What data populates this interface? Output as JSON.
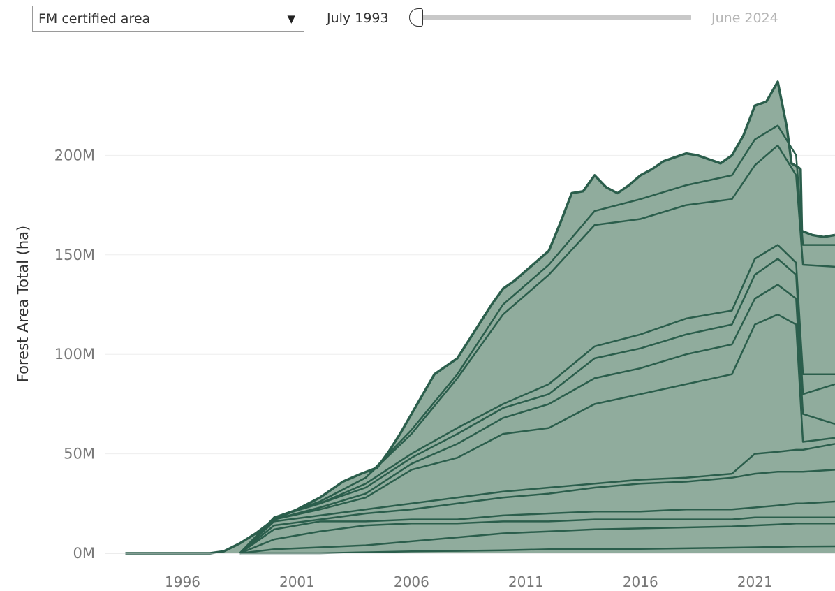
{
  "filter": {
    "selected": "FM certified area"
  },
  "time_slider": {
    "start_label": "July 1993",
    "end_label": "June 2024",
    "position": 0
  },
  "chart_data": {
    "type": "area",
    "stacked": true,
    "title": "",
    "xlabel": "",
    "ylabel": "Forest Area Total (ha)",
    "xlim": [
      1992.6,
      2024.5
    ],
    "ylim": [
      0,
      250000000
    ],
    "x_ticks": [
      "1996",
      "2001",
      "2006",
      "2011",
      "2016",
      "2021"
    ],
    "x_tick_values": [
      1996,
      2001,
      2006,
      2011,
      2016,
      2021
    ],
    "y_ticks": [
      "0M",
      "50M",
      "100M",
      "150M",
      "200M"
    ],
    "y_tick_values": [
      0,
      50000000,
      100000000,
      150000000,
      200000000
    ],
    "grid": true,
    "legend": "none",
    "colors": {
      "line": "#2b5e4c",
      "fill": "#8aa898",
      "grid": "#eeeeee"
    },
    "total": {
      "x": [
        1993.5,
        1995.0,
        1996.5,
        1997.2,
        1997.8,
        1998.5,
        1999.2,
        2000.0,
        2001.0,
        2002.0,
        2003.0,
        2003.8,
        2004.5,
        2005.0,
        2005.5,
        2006.0,
        2006.5,
        2007.0,
        2007.5,
        2008.0,
        2008.5,
        2009.0,
        2009.5,
        2010.0,
        2010.5,
        2011.0,
        2011.5,
        2012.0,
        2012.5,
        2013.0,
        2013.5,
        2014.0,
        2014.5,
        2015.0,
        2015.5,
        2016.0,
        2016.5,
        2017.0,
        2017.5,
        2018.0,
        2018.5,
        2019.0,
        2019.5,
        2020.0,
        2020.5,
        2021.0,
        2021.5,
        2022.0,
        2022.4,
        2022.6,
        2022.9,
        2023.0,
        2023.05,
        2023.5,
        2024.0,
        2024.5
      ],
      "y": [
        0,
        0,
        0,
        0,
        1000000,
        5000000,
        10000000,
        17000000,
        22000000,
        28000000,
        36000000,
        40000000,
        43000000,
        51000000,
        60000000,
        70000000,
        80000000,
        90000000,
        94000000,
        98000000,
        107000000,
        116000000,
        125000000,
        133000000,
        137000000,
        142000000,
        147000000,
        152000000,
        166000000,
        181000000,
        182000000,
        190000000,
        184000000,
        181000000,
        185000000,
        190000000,
        193000000,
        197000000,
        199000000,
        201000000,
        200000000,
        198000000,
        196000000,
        200000000,
        210000000,
        225000000,
        227000000,
        237000000,
        214000000,
        196000000,
        194000000,
        193000000,
        162000000,
        160000000,
        159000000,
        160000000
      ]
    },
    "layers": [
      {
        "x": [
          1998.5,
          2000,
          2002,
          2004,
          2006,
          2008,
          2010,
          2012,
          2014,
          2016,
          2018,
          2020,
          2021,
          2022,
          2022.8,
          2023.1,
          2024.5
        ],
        "y": [
          0,
          0,
          0,
          500000,
          1000000,
          1200000,
          1500000,
          2000000,
          2000000,
          2200000,
          2500000,
          2800000,
          3000000,
          3200000,
          3400000,
          3400000,
          3500000
        ]
      },
      {
        "x": [
          1998.5,
          2000,
          2002,
          2004,
          2006,
          2008,
          2010,
          2012,
          2014,
          2016,
          2018,
          2020,
          2021,
          2022,
          2022.8,
          2023.1,
          2024.5
        ],
        "y": [
          0,
          2000000,
          3000000,
          4000000,
          6000000,
          8000000,
          10000000,
          11000000,
          12000000,
          12500000,
          13000000,
          13500000,
          14000000,
          14500000,
          15000000,
          15000000,
          15000000
        ]
      },
      {
        "x": [
          1998.5,
          2000,
          2002,
          2004,
          2006,
          2008,
          2010,
          2012,
          2014,
          2016,
          2018,
          2020,
          2021,
          2022,
          2022.8,
          2023.1,
          2024.5
        ],
        "y": [
          0,
          7000000,
          11000000,
          14000000,
          15000000,
          15000000,
          16000000,
          16000000,
          17000000,
          17000000,
          17000000,
          17000000,
          18000000,
          18000000,
          18000000,
          18000000,
          18000000
        ]
      },
      {
        "x": [
          1998.5,
          2000,
          2002,
          2004,
          2006,
          2008,
          2010,
          2012,
          2014,
          2016,
          2018,
          2020,
          2021,
          2022,
          2022.8,
          2023.1,
          2024.5
        ],
        "y": [
          0,
          12000000,
          16000000,
          16000000,
          17000000,
          17000000,
          19000000,
          20000000,
          21000000,
          21000000,
          22000000,
          22000000,
          23000000,
          24000000,
          25000000,
          25000000,
          26000000
        ]
      },
      {
        "x": [
          1998.5,
          2000,
          2002,
          2004,
          2006,
          2008,
          2010,
          2012,
          2014,
          2016,
          2018,
          2020,
          2021,
          2022,
          2022.8,
          2023.1,
          2024.5
        ],
        "y": [
          0,
          14000000,
          17000000,
          20000000,
          22000000,
          25000000,
          28000000,
          30000000,
          33000000,
          35000000,
          36000000,
          38000000,
          40000000,
          41000000,
          41000000,
          41000000,
          42000000
        ]
      },
      {
        "x": [
          1998.5,
          2000,
          2002,
          2004,
          2006,
          2008,
          2010,
          2012,
          2014,
          2016,
          2018,
          2020,
          2021,
          2022,
          2022.8,
          2023.1,
          2024.5
        ],
        "y": [
          0,
          16000000,
          19000000,
          22000000,
          25000000,
          28000000,
          31000000,
          33000000,
          35000000,
          37000000,
          38000000,
          40000000,
          50000000,
          51000000,
          52000000,
          52000000,
          55000000
        ]
      },
      {
        "x": [
          1998.5,
          2000,
          2002,
          2004,
          2006,
          2008,
          2010,
          2012,
          2014,
          2016,
          2018,
          2020,
          2021,
          2022,
          2022.8,
          2023.1,
          2024.5
        ],
        "y": [
          0,
          17000000,
          22000000,
          28000000,
          42000000,
          48000000,
          60000000,
          63000000,
          75000000,
          80000000,
          85000000,
          90000000,
          115000000,
          120000000,
          115000000,
          56000000,
          58000000
        ]
      },
      {
        "x": [
          1998.5,
          2000,
          2002,
          2004,
          2006,
          2008,
          2010,
          2012,
          2014,
          2016,
          2018,
          2020,
          2021,
          2022,
          2022.8,
          2023.1,
          2024.5
        ],
        "y": [
          0,
          17000000,
          23000000,
          30000000,
          45000000,
          55000000,
          68000000,
          75000000,
          88000000,
          93000000,
          100000000,
          105000000,
          128000000,
          135000000,
          128000000,
          70000000,
          65000000
        ]
      },
      {
        "x": [
          1998.5,
          2000,
          2002,
          2004,
          2006,
          2008,
          2010,
          2012,
          2014,
          2016,
          2018,
          2020,
          2021,
          2022,
          2022.8,
          2023.1,
          2024.5
        ],
        "y": [
          0,
          18000000,
          25000000,
          33000000,
          48000000,
          60000000,
          73000000,
          80000000,
          98000000,
          103000000,
          110000000,
          115000000,
          140000000,
          148000000,
          140000000,
          80000000,
          85000000
        ]
      },
      {
        "x": [
          1998.5,
          2000,
          2002,
          2004,
          2006,
          2008,
          2010,
          2012,
          2014,
          2016,
          2018,
          2020,
          2021,
          2022,
          2022.8,
          2023.1,
          2024.5
        ],
        "y": [
          0,
          18000000,
          25000000,
          35000000,
          50000000,
          63000000,
          75000000,
          85000000,
          104000000,
          110000000,
          118000000,
          122000000,
          148000000,
          155000000,
          146000000,
          90000000,
          90000000
        ]
      },
      {
        "x": [
          1998.5,
          2000,
          2002,
          2004,
          2006,
          2008,
          2010,
          2012,
          2014,
          2016,
          2018,
          2020,
          2021,
          2022,
          2022.8,
          2023.1,
          2024.5
        ],
        "y": [
          0,
          18000000,
          26000000,
          38000000,
          60000000,
          88000000,
          120000000,
          140000000,
          165000000,
          168000000,
          175000000,
          178000000,
          195000000,
          205000000,
          190000000,
          145000000,
          144000000
        ]
      },
      {
        "x": [
          1998.5,
          2000,
          2002,
          2004,
          2006,
          2008,
          2010,
          2012,
          2014,
          2016,
          2018,
          2020,
          2021,
          2022,
          2022.8,
          2023.1,
          2024.5
        ],
        "y": [
          0,
          18000000,
          26000000,
          38000000,
          62000000,
          90000000,
          125000000,
          145000000,
          172000000,
          178000000,
          185000000,
          190000000,
          208000000,
          215000000,
          200000000,
          155000000,
          155000000
        ]
      }
    ]
  }
}
